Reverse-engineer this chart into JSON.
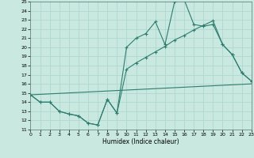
{
  "xlabel": "Humidex (Indice chaleur)",
  "bg_color": "#c8e8e0",
  "line_color": "#2e7d6e",
  "grid_color": "#b0d8d0",
  "ylim": [
    11,
    25
  ],
  "xlim": [
    0,
    23
  ],
  "yticks": [
    11,
    12,
    13,
    14,
    15,
    16,
    17,
    18,
    19,
    20,
    21,
    22,
    23,
    24,
    25
  ],
  "xticks": [
    0,
    1,
    2,
    3,
    4,
    5,
    6,
    7,
    8,
    9,
    10,
    11,
    12,
    13,
    14,
    15,
    16,
    17,
    18,
    19,
    20,
    21,
    22,
    23
  ],
  "line1_x": [
    0,
    1,
    2,
    3,
    4,
    5,
    6,
    7,
    8,
    9,
    10,
    11,
    12,
    13,
    14,
    15,
    16,
    17,
    18,
    19,
    20,
    21,
    22,
    23
  ],
  "line1_y": [
    14.8,
    14.0,
    14.0,
    13.0,
    12.7,
    12.5,
    11.7,
    11.5,
    14.3,
    12.8,
    20.0,
    21.0,
    21.5,
    22.8,
    20.3,
    25.0,
    25.2,
    22.5,
    22.3,
    22.5,
    20.3,
    19.2,
    17.2,
    16.3
  ],
  "line2_x": [
    0,
    1,
    2,
    3,
    4,
    5,
    6,
    7,
    8,
    9,
    10,
    11,
    12,
    13,
    14,
    15,
    16,
    17,
    18,
    19,
    20,
    21,
    22,
    23
  ],
  "line2_y": [
    14.8,
    14.0,
    14.0,
    13.0,
    12.7,
    12.5,
    11.7,
    11.5,
    14.3,
    12.8,
    17.6,
    18.3,
    18.9,
    19.5,
    20.1,
    20.8,
    21.3,
    21.9,
    22.4,
    22.9,
    20.3,
    19.2,
    17.2,
    16.3
  ],
  "line3_x": [
    0,
    23
  ],
  "line3_y": [
    14.8,
    16.0
  ]
}
